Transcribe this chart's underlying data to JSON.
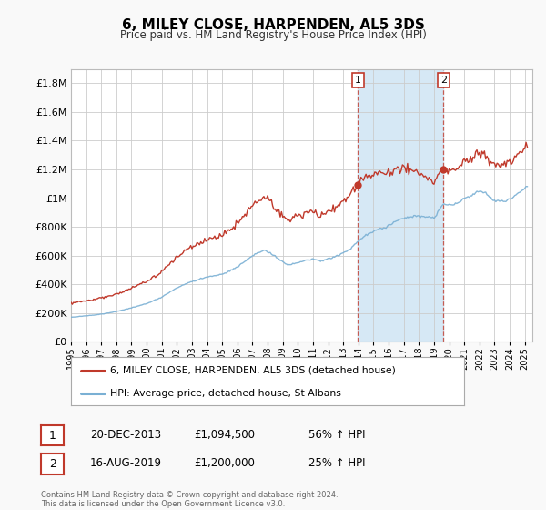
{
  "title": "6, MILEY CLOSE, HARPENDEN, AL5 3DS",
  "subtitle": "Price paid vs. HM Land Registry's House Price Index (HPI)",
  "hpi_color": "#7ab0d4",
  "price_color": "#c0392b",
  "shading_color": "#d6e8f5",
  "ylim": [
    0,
    1900000
  ],
  "xlim_start": 1995.0,
  "xlim_end": 2025.5,
  "yticks": [
    0,
    200000,
    400000,
    600000,
    800000,
    1000000,
    1200000,
    1400000,
    1600000,
    1800000
  ],
  "ytick_labels": [
    "£0",
    "£200K",
    "£400K",
    "£600K",
    "£800K",
    "£1M",
    "£1.2M",
    "£1.4M",
    "£1.6M",
    "£1.8M"
  ],
  "xticks": [
    1995,
    1996,
    1997,
    1998,
    1999,
    2000,
    2001,
    2002,
    2003,
    2004,
    2005,
    2006,
    2007,
    2008,
    2009,
    2010,
    2011,
    2012,
    2013,
    2014,
    2015,
    2016,
    2017,
    2018,
    2019,
    2020,
    2021,
    2022,
    2023,
    2024,
    2025
  ],
  "sale1_x": 2013.97,
  "sale1_y": 1094500,
  "sale1_label": "1",
  "sale1_date": "20-DEC-2013",
  "sale1_price": "£1,094,500",
  "sale1_hpi": "56% ↑ HPI",
  "sale2_x": 2019.62,
  "sale2_y": 1200000,
  "sale2_label": "2",
  "sale2_date": "16-AUG-2019",
  "sale2_price": "£1,200,000",
  "sale2_hpi": "25% ↑ HPI",
  "legend_line1": "6, MILEY CLOSE, HARPENDEN, AL5 3DS (detached house)",
  "legend_line2": "HPI: Average price, detached house, St Albans",
  "footer1": "Contains HM Land Registry data © Crown copyright and database right 2024.",
  "footer2": "This data is licensed under the Open Government Licence v3.0.",
  "background_color": "#f9f9f9",
  "plot_bg_color": "#ffffff",
  "grid_color": "#cccccc"
}
